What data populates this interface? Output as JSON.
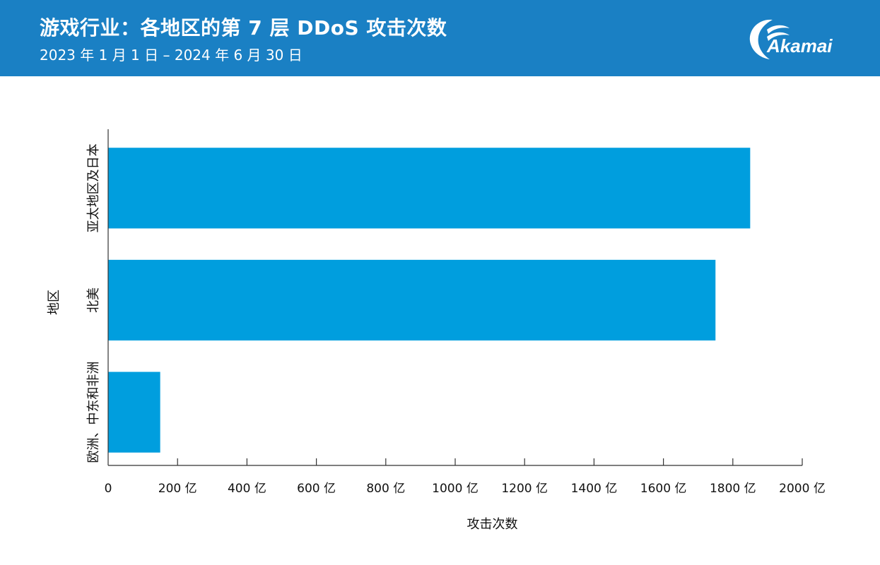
{
  "header": {
    "title": "游戏行业：各地区的第 7 层 DDoS 攻击次数",
    "subtitle": "2023 年 1 月 1 日 – 2024 年 6 月 30 日",
    "logo_text": "Akamai",
    "background_color": "#1a80c4"
  },
  "chart_data": {
    "type": "bar",
    "orientation": "horizontal",
    "categories": [
      "亚太地区及日本",
      "北美",
      "欧洲、中东和非洲"
    ],
    "values": [
      1850,
      1750,
      150
    ],
    "unit": "亿",
    "xlabel": "攻击次数",
    "ylabel": "地区",
    "xlim": [
      0,
      2000
    ],
    "x_ticks": [
      0,
      200,
      400,
      600,
      800,
      1000,
      1200,
      1400,
      1600,
      1800,
      2000
    ],
    "x_tick_labels": [
      "0",
      "200 亿",
      "400 亿",
      "600 亿",
      "800 亿",
      "1000 亿",
      "1200 亿",
      "1400 亿",
      "1600 亿",
      "1800 亿",
      "2000 亿"
    ],
    "bar_color": "#009ede",
    "grid": false,
    "legend": "none"
  }
}
